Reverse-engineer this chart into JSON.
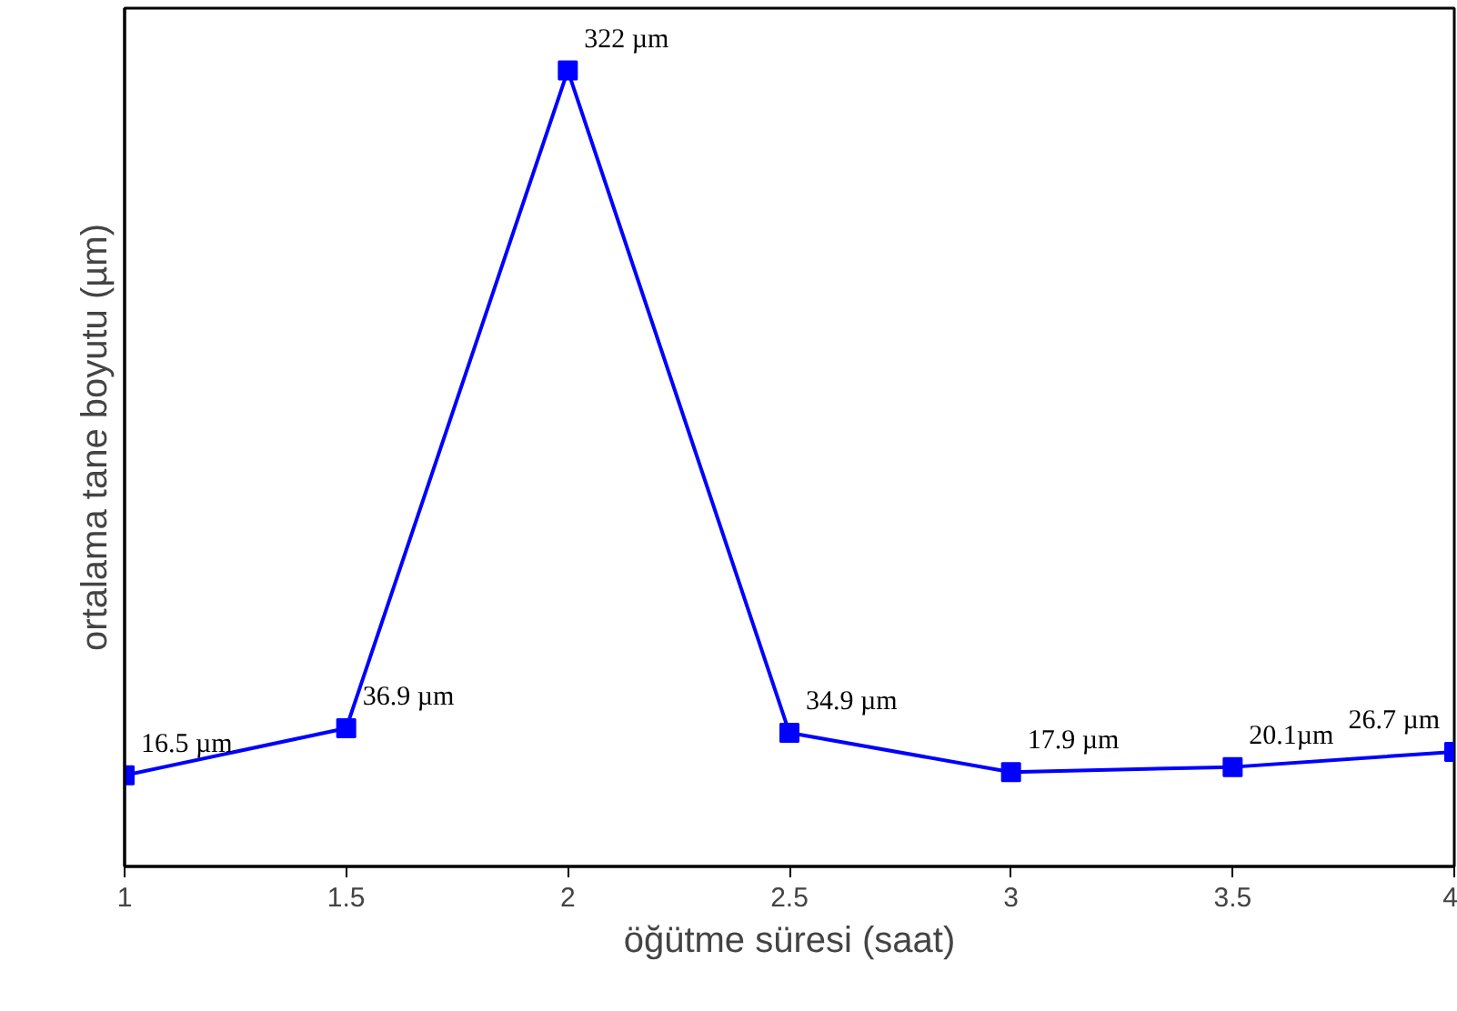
{
  "chart_data": {
    "type": "line",
    "xlabel": "öğütme süresi (saat)",
    "ylabel": "ortalama tane boyutu (µm)",
    "x": [
      1,
      1.5,
      2,
      2.5,
      3,
      3.5,
      4
    ],
    "series": [
      {
        "color": "#0000ff",
        "values": [
          16.5,
          36.9,
          322,
          34.9,
          17.9,
          20.1,
          26.7
        ],
        "value_labels": [
          "16.5 µm",
          "36.9 µm",
          "322 µm",
          "34.9 µm",
          "17.9 µm",
          "20.1µm",
          "26.7 µm"
        ]
      }
    ],
    "xlim": [
      1,
      4
    ],
    "xticks": [
      1,
      1.5,
      2,
      2.5,
      3,
      3.5,
      4
    ],
    "ylim": [
      -23,
      349
    ],
    "tick_labels": "x",
    "marker": "square",
    "grid": false
  }
}
